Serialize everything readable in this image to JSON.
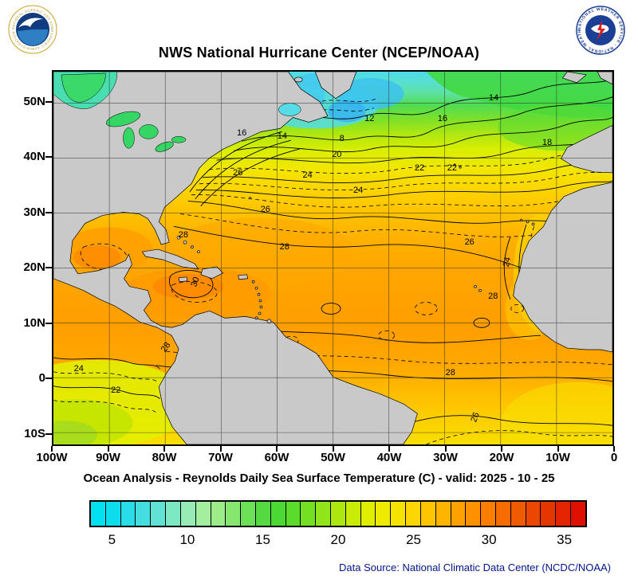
{
  "header": {
    "title": "NWS National Hurricane Center (NCEP/NOAA)",
    "noaa_logo_alt": "NOAA",
    "nws_logo_alt": "National Weather Service",
    "noaa_ring": "NATIONAL OCEANIC AND ATMOSPHERIC ADMINISTRATION - U.S. DEPARTMENT OF COMMERCE -",
    "nws_ring": "NATIONAL WEATHER SERVICE - NATIONAL WEATHER SERVICE -"
  },
  "caption": {
    "subtitle": "Ocean Analysis - Reynolds Daily Sea Surface Temperature (C) - valid: 2025 - 10 - 25",
    "data_source": "Data Source: National Climatic Data Center (NCDC/NOAA)"
  },
  "chart_data": {
    "type": "heatmap",
    "subtype": "sea-surface-temperature-contour-analysis",
    "title": "NWS National Hurricane Center (NCEP/NOAA)",
    "caption": "Ocean Analysis - Reynolds Daily Sea Surface Temperature (C) - valid: 2025 - 10 - 25",
    "units": "C",
    "valid_date": "2025 - 10 - 25",
    "x_axis": {
      "ticks": [
        "100W",
        "90W",
        "80W",
        "70W",
        "60W",
        "50W",
        "40W",
        "30W",
        "20W",
        "10W",
        "0"
      ],
      "lon_range": [
        -100,
        0
      ]
    },
    "y_axis": {
      "ticks": [
        "50N",
        "40N",
        "30N",
        "20N",
        "10N",
        "0",
        "10S"
      ],
      "lat_range": [
        -12.2,
        55.75
      ]
    },
    "colorbar": {
      "tick_labels": [
        "5",
        "10",
        "15",
        "20",
        "25",
        "30",
        "35"
      ],
      "tick_values": [
        5,
        10,
        15,
        20,
        25,
        30,
        35
      ],
      "value_min": 3.5,
      "value_max": 36.5,
      "colors": [
        "#00e0ee",
        "#0cdcec",
        "#28dce8",
        "#44dee0",
        "#60e2d4",
        "#7ce8c4",
        "#96ecb4",
        "#a4eea0",
        "#9cec8a",
        "#86e670",
        "#6ce056",
        "#54da40",
        "#4cd934",
        "#5cdc2a",
        "#74e022",
        "#90e41a",
        "#ace810",
        "#c8ec08",
        "#e0ee00",
        "#eeea00",
        "#f6e200",
        "#fcd600",
        "#ffc600",
        "#ffb400",
        "#ffa200",
        "#ff9000",
        "#fc7e00",
        "#f66c00",
        "#f05a00",
        "#ea4800",
        "#e63600",
        "#e42400",
        "#e01000"
      ]
    },
    "contour_interval_c": 1,
    "contour_labels_c": [
      {
        "value": 12,
        "lon": -43.8,
        "lat": 47.3,
        "rot": 0
      },
      {
        "value": 8,
        "lon": -48.7,
        "lat": 43.7,
        "rot": 0
      },
      {
        "value": 14,
        "lon": -59.3,
        "lat": 44.1,
        "rot": 0
      },
      {
        "value": 16,
        "lon": -66.5,
        "lat": 44.7,
        "rot": 0
      },
      {
        "value": 16,
        "lon": -30.8,
        "lat": 47.3,
        "rot": 0
      },
      {
        "value": 14,
        "lon": -21.7,
        "lat": 51.0,
        "rot": 0
      },
      {
        "value": 18,
        "lon": -12.2,
        "lat": 42.9,
        "rot": 0
      },
      {
        "value": 20,
        "lon": -49.6,
        "lat": 40.8,
        "rot": 0
      },
      {
        "value": 26,
        "lon": -67.2,
        "lat": 37.5,
        "rot": 0
      },
      {
        "value": 24,
        "lon": -54.8,
        "lat": 37.0,
        "rot": 0
      },
      {
        "value": 22,
        "lon": -34.9,
        "lat": 38.3,
        "rot": 0
      },
      {
        "value": 22,
        "lon": -29.1,
        "lat": 38.3,
        "rot": 0
      },
      {
        "value": 24,
        "lon": -45.8,
        "lat": 34.3,
        "rot": 0
      },
      {
        "value": 26,
        "lon": -62.3,
        "lat": 30.9,
        "rot": 0
      },
      {
        "value": 28,
        "lon": -76.9,
        "lat": 26.3,
        "rot": 0
      },
      {
        "value": 28,
        "lon": -58.9,
        "lat": 24.1,
        "rot": 0
      },
      {
        "value": 26,
        "lon": -26.0,
        "lat": 25.0,
        "rot": 0
      },
      {
        "value": 24,
        "lon": -19.3,
        "lat": 21.4,
        "rot": -78
      },
      {
        "value": 30,
        "lon": -74.8,
        "lat": 17.8,
        "rot": -70
      },
      {
        "value": 28,
        "lon": -21.8,
        "lat": 15.2,
        "rot": 0
      },
      {
        "value": 28,
        "lon": -80.0,
        "lat": 6.0,
        "rot": -55
      },
      {
        "value": 24,
        "lon": -95.5,
        "lat": 2.1,
        "rot": 0
      },
      {
        "value": 22,
        "lon": -88.9,
        "lat": -1.8,
        "rot": 0
      },
      {
        "value": 28,
        "lon": -29.4,
        "lat": 1.4,
        "rot": 0
      },
      {
        "value": 26,
        "lon": -25.0,
        "lat": -6.7,
        "rot": -70
      }
    ]
  }
}
